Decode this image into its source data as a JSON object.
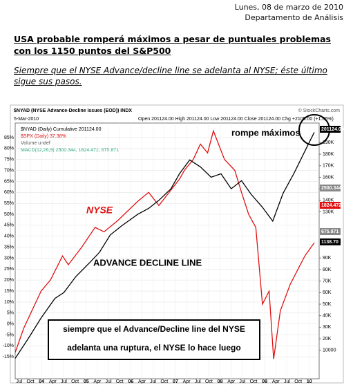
{
  "header": {
    "date": "Lunes, 08 de marzo de 2010",
    "department": "Departamento de Análisis"
  },
  "article": {
    "title": "USA probable romperá máximos a pesar de puntuales problemas con los 1150 puntos del S&P500",
    "subtitle": "Siempre que el NYSE Advance/decline line se adelanta al NYSE; éste último sigue sus pasos."
  },
  "chart_data": {
    "type": "line",
    "title": "$NYAD (NYSE Advance-Decline Issues (EOD)) INDX",
    "date_label": "5-Mar-2010",
    "quote": "Open 201124.00 High 201124.00 Low 201124.00 Close 201124.00 Chg +2105.00 (+1.06%)",
    "source": "© StockCharts.com",
    "legend_extra": [
      "Volume undef",
      "MACD(12,26,9) 2500.344, 1824.472, 675.871"
    ],
    "xlim": [
      2003.41,
      2010.22
    ],
    "xticks": [
      {
        "value": 2003.5,
        "label": "Jul"
      },
      {
        "value": 2003.75,
        "label": "Oct"
      },
      {
        "value": 2004,
        "label": "04"
      },
      {
        "value": 2004.25,
        "label": "Apr"
      },
      {
        "value": 2004.5,
        "label": "Jul"
      },
      {
        "value": 2004.75,
        "label": "Oct"
      },
      {
        "value": 2005,
        "label": "05"
      },
      {
        "value": 2005.25,
        "label": "Apr"
      },
      {
        "value": 2005.5,
        "label": "Jul"
      },
      {
        "value": 2005.75,
        "label": "Oct"
      },
      {
        "value": 2006,
        "label": "06"
      },
      {
        "value": 2006.25,
        "label": "Apr"
      },
      {
        "value": 2006.5,
        "label": "Jul"
      },
      {
        "value": 2006.75,
        "label": "Oct"
      },
      {
        "value": 2007,
        "label": "07"
      },
      {
        "value": 2007.25,
        "label": "Apr"
      },
      {
        "value": 2007.5,
        "label": "Jul"
      },
      {
        "value": 2007.75,
        "label": "Oct"
      },
      {
        "value": 2008,
        "label": "08"
      },
      {
        "value": 2008.25,
        "label": "Apr"
      },
      {
        "value": 2008.5,
        "label": "Jul"
      },
      {
        "value": 2008.75,
        "label": "Oct"
      },
      {
        "value": 2009,
        "label": "09"
      },
      {
        "value": 2009.25,
        "label": "Apr"
      },
      {
        "value": 2009.5,
        "label": "Jul"
      },
      {
        "value": 2009.75,
        "label": "Oct"
      },
      {
        "value": 2010,
        "label": "10"
      }
    ],
    "ylim": [
      -25,
      91.6
    ],
    "yticks": [
      {
        "value": 85,
        "label": "85%"
      },
      {
        "value": 80,
        "label": "80%"
      },
      {
        "value": 75,
        "label": "75%"
      },
      {
        "value": 70,
        "label": "70%"
      },
      {
        "value": 65,
        "label": "65%"
      },
      {
        "value": 60,
        "label": "60%"
      },
      {
        "value": 55,
        "label": "55%"
      },
      {
        "value": 50,
        "label": "50%"
      },
      {
        "value": 45,
        "label": "45%"
      },
      {
        "value": 40,
        "label": "40%"
      },
      {
        "value": 35,
        "label": "35%"
      },
      {
        "value": 30,
        "label": "30%"
      },
      {
        "value": 25,
        "label": "25%"
      },
      {
        "value": 20,
        "label": "20%"
      },
      {
        "value": 15,
        "label": "15%"
      },
      {
        "value": 10,
        "label": "10%"
      },
      {
        "value": 5,
        "label": "5%"
      },
      {
        "value": 0,
        "label": "0%"
      },
      {
        "value": -5,
        "label": "-5%"
      },
      {
        "value": -10,
        "label": "-10%"
      },
      {
        "value": -15,
        "label": "-15%"
      }
    ],
    "y2lim": [
      -14700,
      207000
    ],
    "y2ticks": [
      10000,
      {
        "value": 20000,
        "label": "20K"
      },
      {
        "value": 30000,
        "label": "30K"
      },
      {
        "value": 40000,
        "label": "40K"
      },
      {
        "value": 50000,
        "label": "50K"
      },
      {
        "value": 60000,
        "label": "60K"
      },
      {
        "value": 70000,
        "label": "70K"
      },
      {
        "value": 80000,
        "label": "80K"
      },
      {
        "value": 90000,
        "label": "90K"
      },
      {
        "value": 130000,
        "label": "130K"
      },
      {
        "value": 140000,
        "label": "140K"
      },
      {
        "value": 150000,
        "label": "150K"
      },
      {
        "value": 160000,
        "label": "160K"
      },
      {
        "value": 170000,
        "label": "170K"
      },
      {
        "value": 180000,
        "label": "180K"
      },
      {
        "value": 190000,
        "label": "190K"
      }
    ],
    "grid": true,
    "series": [
      {
        "name": "$SPX (Daily) 37.38%",
        "color": "#e01010",
        "axis": "y",
        "x": [
          2003.41,
          2003.6,
          2003.99,
          2004.2,
          2004.47,
          2004.6,
          2004.9,
          2005.2,
          2005.4,
          2005.7,
          2006.16,
          2006.4,
          2006.63,
          2007.09,
          2007.2,
          2007.4,
          2007.56,
          2007.72,
          2007.85,
          2008.1,
          2008.33,
          2008.48,
          2008.64,
          2008.8,
          2008.95,
          2009.1,
          2009.2,
          2009.35,
          2009.57,
          2009.9,
          2010.11
        ],
        "values": [
          -13,
          -2,
          15,
          20,
          31,
          27,
          35,
          44,
          42,
          47,
          56,
          60,
          54,
          66,
          70,
          75,
          82,
          78,
          88,
          75,
          70,
          60,
          50,
          44,
          9,
          15,
          -16,
          6,
          18,
          31,
          37
        ]
      },
      {
        "name": "$NYAD (Daily) Cumulative 201124.00",
        "color": "#000000",
        "axis": "y2",
        "x": [
          2003.41,
          2003.7,
          2003.99,
          2004.3,
          2004.5,
          2004.77,
          2005.08,
          2005.3,
          2005.54,
          2005.8,
          2006.16,
          2006.4,
          2006.63,
          2006.9,
          2007.09,
          2007.32,
          2007.56,
          2007.8,
          2008.02,
          2008.25,
          2008.48,
          2008.7,
          2008.95,
          2009.18,
          2009.41,
          2009.65,
          2009.88,
          2010.11
        ],
        "values": [
          3000,
          20000,
          38000,
          55000,
          60000,
          74000,
          86000,
          95000,
          110000,
          118000,
          128000,
          133000,
          140000,
          150000,
          163000,
          175000,
          169000,
          160000,
          163000,
          150000,
          157000,
          145000,
          134000,
          122000,
          146000,
          163000,
          181000,
          199000
        ]
      }
    ],
    "last_values": [
      {
        "label": "201124.00",
        "color": "#000000"
      },
      {
        "label": "2500.344",
        "color": "#888888"
      },
      {
        "label": "1824.472",
        "color": "#e01010"
      },
      {
        "label": "675.871",
        "color": "#888888"
      },
      {
        "label": "1138.70",
        "color": "#000000"
      }
    ],
    "annotations": {
      "breakout": "rompe máximos",
      "nyse": "NYSE",
      "adl": "ADVANCE DECLINE LINE",
      "box": [
        "siempre que el Advance/Decline line del NYSE",
        "adelanta una ruptura, el NYSE lo hace luego"
      ]
    }
  }
}
